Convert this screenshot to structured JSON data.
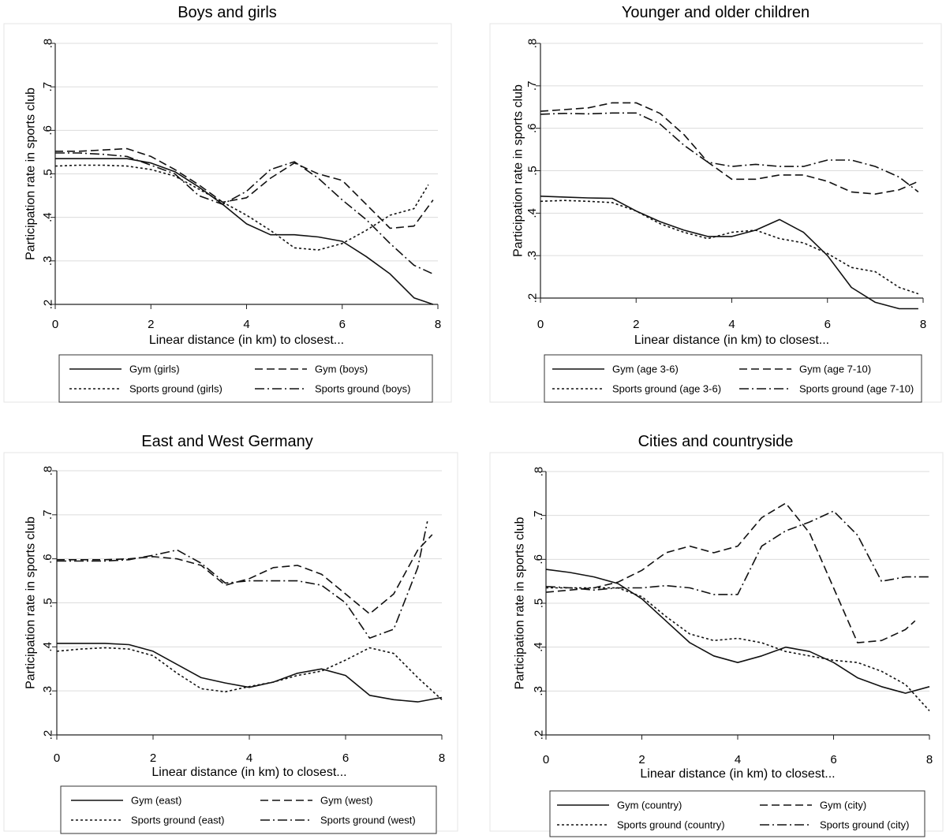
{
  "chart_data": [
    {
      "type": "line",
      "title": "Boys and girls",
      "xlabel": "Linear distance (in km) to closest...",
      "ylabel": "Participation rate in sports club",
      "xlim": [
        0,
        8
      ],
      "ylim": [
        0.2,
        0.8
      ],
      "xticks": [
        "0",
        "2",
        "4",
        "6",
        "8"
      ],
      "yticks": [
        ".2",
        ".3",
        ".4",
        ".5",
        ".6",
        ".7",
        ".8"
      ],
      "legend": "bottom",
      "series": [
        {
          "name": "Gym (girls)",
          "style": "solid",
          "x": [
            0,
            0.5,
            1,
            1.5,
            2,
            2.5,
            3,
            3.5,
            4,
            4.5,
            5,
            5.5,
            6,
            6.5,
            7,
            7.5,
            7.9
          ],
          "y": [
            0.535,
            0.535,
            0.535,
            0.535,
            0.525,
            0.505,
            0.47,
            0.43,
            0.385,
            0.36,
            0.36,
            0.355,
            0.345,
            0.31,
            0.27,
            0.215,
            0.2
          ]
        },
        {
          "name": "Gym (boys)",
          "style": "dash",
          "x": [
            0,
            0.5,
            1,
            1.5,
            2,
            2.5,
            3,
            3.5,
            4,
            4.5,
            5,
            5.5,
            6,
            6.5,
            7,
            7.5,
            7.9
          ],
          "y": [
            0.552,
            0.552,
            0.555,
            0.558,
            0.54,
            0.51,
            0.475,
            0.435,
            0.445,
            0.49,
            0.525,
            0.5,
            0.485,
            0.43,
            0.375,
            0.38,
            0.44
          ]
        },
        {
          "name": "Sports ground (girls)",
          "style": "dot",
          "x": [
            0,
            0.5,
            1,
            1.5,
            2,
            2.5,
            3,
            3.5,
            4,
            4.5,
            5,
            5.5,
            6,
            6.5,
            7,
            7.5,
            7.8
          ],
          "y": [
            0.518,
            0.52,
            0.52,
            0.518,
            0.51,
            0.495,
            0.465,
            0.435,
            0.405,
            0.37,
            0.33,
            0.325,
            0.34,
            0.37,
            0.405,
            0.42,
            0.475
          ]
        },
        {
          "name": "Sports ground (boys)",
          "style": "dashdot",
          "x": [
            0,
            0.5,
            1,
            1.5,
            2,
            2.5,
            3,
            3.5,
            4,
            4.5,
            5,
            5.5,
            6,
            6.5,
            7,
            7.5,
            7.9
          ],
          "y": [
            0.548,
            0.548,
            0.545,
            0.54,
            0.52,
            0.5,
            0.45,
            0.43,
            0.46,
            0.51,
            0.528,
            0.49,
            0.44,
            0.395,
            0.34,
            0.29,
            0.27
          ]
        }
      ]
    },
    {
      "type": "line",
      "title": "Younger and older children",
      "xlabel": "Linear distance (in km) to closest...",
      "ylabel": "Participation rate in sports club",
      "xlim": [
        0,
        8
      ],
      "ylim": [
        0.2,
        0.8
      ],
      "xticks": [
        "0",
        "2",
        "4",
        "6",
        "8"
      ],
      "yticks": [
        ".2",
        ".3",
        ".4",
        ".5",
        ".6",
        ".7",
        ".8"
      ],
      "legend": "bottom",
      "series": [
        {
          "name": "Gym (age 3-6)",
          "style": "solid",
          "x": [
            0,
            0.5,
            1,
            1.5,
            2,
            2.5,
            3,
            3.5,
            4,
            4.5,
            5,
            5.5,
            6,
            6.5,
            7,
            7.5,
            7.9
          ],
          "y": [
            0.44,
            0.438,
            0.436,
            0.435,
            0.405,
            0.38,
            0.36,
            0.345,
            0.345,
            0.36,
            0.385,
            0.355,
            0.3,
            0.225,
            0.19,
            0.175,
            0.175
          ]
        },
        {
          "name": "Gym (age 7-10)",
          "style": "dash",
          "x": [
            0,
            0.5,
            1,
            1.5,
            2,
            2.5,
            3,
            3.5,
            4,
            4.5,
            5,
            5.5,
            6,
            6.5,
            7,
            7.5,
            7.9
          ],
          "y": [
            0.64,
            0.644,
            0.648,
            0.66,
            0.66,
            0.635,
            0.585,
            0.52,
            0.48,
            0.48,
            0.49,
            0.49,
            0.475,
            0.45,
            0.445,
            0.455,
            0.475
          ]
        },
        {
          "name": "Sports ground (age 3-6)",
          "style": "dot",
          "x": [
            0,
            0.5,
            1,
            1.5,
            2,
            2.5,
            3,
            3.5,
            4,
            4.5,
            5,
            5.5,
            6,
            6.5,
            7,
            7.5,
            7.9
          ],
          "y": [
            0.428,
            0.43,
            0.428,
            0.425,
            0.405,
            0.375,
            0.355,
            0.34,
            0.355,
            0.36,
            0.34,
            0.33,
            0.305,
            0.272,
            0.262,
            0.225,
            0.21
          ]
        },
        {
          "name": "Sports ground (age 7-10)",
          "style": "dashdot",
          "x": [
            0,
            0.5,
            1,
            1.5,
            2,
            2.5,
            3,
            3.5,
            4,
            4.5,
            5,
            5.5,
            6,
            6.5,
            7,
            7.5,
            7.9
          ],
          "y": [
            0.633,
            0.635,
            0.634,
            0.636,
            0.636,
            0.61,
            0.56,
            0.52,
            0.51,
            0.515,
            0.51,
            0.51,
            0.525,
            0.525,
            0.51,
            0.485,
            0.45
          ]
        }
      ]
    },
    {
      "type": "line",
      "title": "East and West Germany",
      "xlabel": "Linear distance (in km) to closest...",
      "ylabel": "Participation rate in sports club",
      "xlim": [
        0,
        8
      ],
      "ylim": [
        0.2,
        0.8
      ],
      "xticks": [
        "0",
        "2",
        "4",
        "6",
        "8"
      ],
      "yticks": [
        ".2",
        ".3",
        ".4",
        ".5",
        ".6",
        ".7",
        ".8"
      ],
      "legend": "bottom",
      "series": [
        {
          "name": "Gym (east)",
          "style": "solid",
          "x": [
            0,
            0.5,
            1,
            1.5,
            2,
            2.5,
            3,
            3.5,
            4,
            4.5,
            5,
            5.5,
            6,
            6.5,
            7,
            7.5,
            8
          ],
          "y": [
            0.408,
            0.408,
            0.408,
            0.405,
            0.39,
            0.36,
            0.33,
            0.318,
            0.308,
            0.32,
            0.34,
            0.35,
            0.335,
            0.29,
            0.28,
            0.275,
            0.285
          ]
        },
        {
          "name": "Gym (west)",
          "style": "dash",
          "x": [
            0,
            0.5,
            1,
            1.5,
            2,
            2.5,
            3,
            3.5,
            4,
            4.5,
            5,
            5.5,
            6,
            6.5,
            7,
            7.5,
            7.8
          ],
          "y": [
            0.598,
            0.598,
            0.598,
            0.6,
            0.605,
            0.6,
            0.585,
            0.54,
            0.555,
            0.58,
            0.585,
            0.565,
            0.52,
            0.475,
            0.52,
            0.62,
            0.655
          ]
        },
        {
          "name": "Sports ground (east)",
          "style": "dot",
          "x": [
            0,
            0.5,
            1,
            1.5,
            2,
            2.5,
            3,
            3.5,
            4,
            4.5,
            5,
            5.5,
            6,
            6.5,
            7,
            7.5,
            8
          ],
          "y": [
            0.39,
            0.395,
            0.398,
            0.395,
            0.38,
            0.34,
            0.305,
            0.298,
            0.31,
            0.32,
            0.335,
            0.345,
            0.37,
            0.398,
            0.385,
            0.33,
            0.28
          ]
        },
        {
          "name": "Sports ground (west)",
          "style": "dashdot",
          "x": [
            0,
            0.5,
            1,
            1.5,
            2,
            2.5,
            3,
            3.5,
            4,
            4.5,
            5,
            5.5,
            6,
            6.5,
            7,
            7.5,
            7.7
          ],
          "y": [
            0.595,
            0.595,
            0.595,
            0.598,
            0.608,
            0.62,
            0.59,
            0.545,
            0.55,
            0.55,
            0.55,
            0.54,
            0.5,
            0.42,
            0.44,
            0.58,
            0.685
          ]
        }
      ]
    },
    {
      "type": "line",
      "title": "Cities and countryside",
      "xlabel": "Linear distance (in km) to closest...",
      "ylabel": "Participation rate in sports club",
      "xlim": [
        0,
        8
      ],
      "ylim": [
        0.2,
        0.8
      ],
      "xticks": [
        "0",
        "2",
        "4",
        "6",
        "8"
      ],
      "yticks": [
        ".2",
        ".3",
        ".4",
        ".5",
        ".6",
        ".7",
        ".8"
      ],
      "legend": "bottom",
      "series": [
        {
          "name": "Gym (country)",
          "style": "solid",
          "x": [
            0,
            0.5,
            1,
            1.5,
            2,
            2.5,
            3,
            3.5,
            4,
            4.5,
            5,
            5.5,
            6,
            6.5,
            7,
            7.5,
            8
          ],
          "y": [
            0.577,
            0.57,
            0.56,
            0.545,
            0.51,
            0.46,
            0.41,
            0.38,
            0.365,
            0.38,
            0.4,
            0.39,
            0.365,
            0.33,
            0.31,
            0.295,
            0.31
          ]
        },
        {
          "name": "Gym (city)",
          "style": "dash",
          "x": [
            0,
            0.5,
            1,
            1.5,
            2,
            2.5,
            3,
            3.5,
            4,
            4.5,
            5,
            5.5,
            6,
            6.5,
            7,
            7.5,
            7.7
          ],
          "y": [
            0.525,
            0.53,
            0.535,
            0.548,
            0.575,
            0.615,
            0.63,
            0.615,
            0.63,
            0.695,
            0.728,
            0.66,
            0.535,
            0.41,
            0.415,
            0.44,
            0.46
          ]
        },
        {
          "name": "Sports ground (country)",
          "style": "dot",
          "x": [
            0,
            0.5,
            1,
            1.5,
            2,
            2.5,
            3,
            3.5,
            4,
            4.5,
            5,
            5.5,
            6,
            6.5,
            7,
            7.5,
            8
          ],
          "y": [
            0.535,
            0.535,
            0.535,
            0.535,
            0.515,
            0.47,
            0.43,
            0.415,
            0.42,
            0.41,
            0.39,
            0.38,
            0.37,
            0.365,
            0.345,
            0.315,
            0.255
          ]
        },
        {
          "name": "Sports ground (city)",
          "style": "dashdot",
          "x": [
            0,
            0.5,
            1,
            1.5,
            2,
            2.5,
            3,
            3.5,
            4,
            4.5,
            5,
            5.5,
            6,
            6.5,
            7,
            7.5,
            8
          ],
          "y": [
            0.538,
            0.535,
            0.53,
            0.535,
            0.535,
            0.54,
            0.535,
            0.52,
            0.52,
            0.63,
            0.665,
            0.685,
            0.71,
            0.655,
            0.55,
            0.56,
            0.56
          ]
        }
      ]
    }
  ]
}
